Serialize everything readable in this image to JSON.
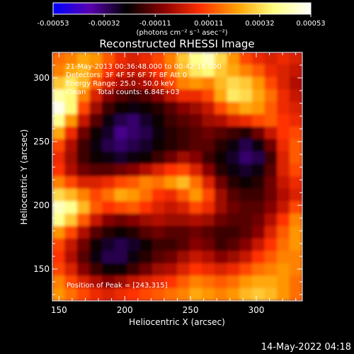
{
  "colorbar": {
    "tick_labels": [
      "-0.00053",
      "-0.00032",
      "-0.00011",
      "0.00011",
      "0.00032",
      "0.00053"
    ],
    "tick_values": [
      -0.00053,
      -0.00032,
      -0.00011,
      0.00011,
      0.00032,
      0.00053
    ],
    "range": [
      -0.00053,
      0.00053
    ],
    "unit_label": "(photons cm⁻² s⁻¹ asec⁻²)",
    "colors": [
      "#0000ff",
      "#5a00b0",
      "#000000",
      "#8a0000",
      "#ff3000",
      "#ffa000",
      "#ffff80",
      "#ffffff"
    ]
  },
  "footer": {
    "timestamp": "14-May-2022 04:18"
  },
  "chart_data": {
    "type": "heatmap",
    "title": "Reconstructed RHESSI Image",
    "xlabel": "Heliocentric X (arcsec)",
    "ylabel": "Heliocentric Y (arcsec)",
    "xlim": [
      145,
      335
    ],
    "ylim": [
      125,
      320
    ],
    "xticks": [
      150,
      200,
      250,
      300
    ],
    "yticks": [
      150,
      200,
      250,
      300
    ],
    "annotations": [
      "21-May-2013 00:36:48.000 to 00:42:16.000",
      "Detectors: 3F 4F 5F 6F 7F 8F Att 0",
      "Energy Range: 25.0 - 50.0 keV",
      "Clean     Total counts: 6.84E+03"
    ],
    "peak_label": "Position of Peak = [243,315]",
    "peak": [
      243,
      315
    ],
    "value_range": [
      -0.00053,
      0.00053
    ],
    "grid_note": "approximate intensity field, columns x=145..335, rows y=320..125",
    "grid": [
      [
        0.3,
        0.35,
        0.45,
        0.4,
        0.25,
        0.1,
        0.05,
        0.1,
        0.2,
        0.35,
        0.55,
        0.75,
        0.85,
        0.6,
        0.4,
        0.2,
        0.1,
        0.05,
        0.1,
        0.05
      ],
      [
        0.35,
        0.45,
        0.5,
        0.35,
        0.15,
        0.05,
        0.0,
        0.05,
        0.15,
        0.3,
        0.5,
        0.65,
        0.7,
        0.55,
        0.45,
        0.35,
        0.25,
        0.1,
        0.05,
        0.0
      ],
      [
        0.55,
        0.65,
        0.5,
        0.25,
        0.05,
        -0.05,
        -0.1,
        -0.05,
        0.05,
        0.2,
        0.35,
        0.4,
        0.35,
        0.5,
        0.6,
        0.55,
        0.4,
        0.2,
        0.05,
        -0.05
      ],
      [
        0.8,
        0.7,
        0.35,
        0.05,
        -0.15,
        -0.25,
        -0.3,
        -0.25,
        -0.15,
        0.0,
        0.1,
        0.1,
        0.2,
        0.45,
        0.65,
        0.6,
        0.45,
        0.3,
        0.1,
        0.0
      ],
      [
        0.95,
        0.7,
        0.2,
        -0.1,
        -0.3,
        -0.4,
        -0.45,
        -0.4,
        -0.35,
        -0.25,
        -0.15,
        -0.1,
        0.0,
        0.2,
        0.35,
        0.45,
        0.4,
        0.25,
        0.1,
        0.05
      ],
      [
        0.75,
        0.4,
        0.0,
        -0.25,
        -0.45,
        -0.55,
        -0.6,
        -0.5,
        -0.4,
        -0.3,
        -0.25,
        -0.2,
        -0.1,
        -0.05,
        0.05,
        0.1,
        0.2,
        0.25,
        0.15,
        0.1
      ],
      [
        0.45,
        0.1,
        -0.2,
        -0.4,
        -0.5,
        -0.65,
        -0.6,
        -0.55,
        -0.45,
        -0.35,
        -0.3,
        -0.25,
        -0.2,
        -0.25,
        -0.3,
        -0.35,
        -0.2,
        0.0,
        0.15,
        0.2
      ],
      [
        0.2,
        -0.05,
        -0.3,
        -0.45,
        -0.55,
        -0.6,
        -0.55,
        -0.5,
        -0.4,
        -0.35,
        -0.3,
        -0.25,
        -0.25,
        -0.35,
        -0.45,
        -0.55,
        -0.45,
        -0.2,
        0.1,
        0.25
      ],
      [
        0.1,
        -0.1,
        -0.3,
        -0.4,
        -0.45,
        -0.5,
        -0.45,
        -0.4,
        -0.3,
        -0.2,
        -0.1,
        -0.15,
        -0.3,
        -0.4,
        -0.5,
        -0.6,
        -0.55,
        -0.3,
        0.05,
        0.25
      ],
      [
        0.15,
        -0.05,
        -0.2,
        -0.25,
        -0.25,
        -0.2,
        -0.15,
        -0.05,
        0.05,
        0.15,
        0.2,
        0.05,
        -0.15,
        -0.35,
        -0.45,
        -0.5,
        -0.45,
        -0.25,
        0.05,
        0.2
      ],
      [
        0.35,
        0.2,
        0.05,
        0.05,
        0.1,
        0.2,
        0.25,
        0.35,
        0.3,
        0.4,
        0.5,
        0.3,
        0.05,
        -0.2,
        -0.35,
        -0.4,
        -0.35,
        -0.2,
        0.0,
        0.1
      ],
      [
        0.6,
        0.5,
        0.35,
        0.2,
        0.3,
        0.45,
        0.4,
        0.3,
        0.15,
        0.1,
        0.25,
        0.4,
        0.2,
        -0.1,
        -0.25,
        -0.3,
        -0.3,
        -0.2,
        -0.05,
        0.05
      ],
      [
        0.85,
        0.75,
        0.5,
        0.25,
        0.15,
        0.2,
        0.25,
        0.15,
        0.05,
        0.0,
        0.05,
        0.2,
        0.1,
        -0.1,
        -0.2,
        -0.25,
        -0.25,
        -0.15,
        0.0,
        0.2
      ],
      [
        0.75,
        0.55,
        0.25,
        0.0,
        -0.15,
        -0.2,
        -0.15,
        -0.1,
        -0.05,
        -0.1,
        -0.1,
        -0.05,
        -0.1,
        -0.2,
        -0.25,
        -0.25,
        -0.2,
        -0.05,
        0.15,
        0.35
      ],
      [
        0.4,
        0.2,
        -0.05,
        -0.25,
        -0.35,
        -0.4,
        -0.35,
        -0.25,
        -0.2,
        -0.25,
        -0.25,
        -0.2,
        -0.25,
        -0.3,
        -0.3,
        -0.25,
        -0.15,
        0.05,
        0.25,
        0.4
      ],
      [
        0.2,
        0.0,
        -0.2,
        -0.4,
        -0.5,
        -0.55,
        -0.5,
        -0.4,
        -0.3,
        -0.3,
        -0.25,
        -0.15,
        -0.2,
        -0.3,
        -0.25,
        -0.15,
        0.0,
        0.15,
        0.3,
        0.4
      ],
      [
        0.15,
        -0.05,
        -0.25,
        -0.45,
        -0.55,
        -0.55,
        -0.45,
        -0.35,
        -0.25,
        -0.2,
        -0.1,
        0.0,
        -0.05,
        -0.15,
        -0.1,
        0.0,
        0.15,
        0.25,
        0.35,
        0.35
      ],
      [
        0.2,
        0.05,
        -0.15,
        -0.3,
        -0.4,
        -0.4,
        -0.3,
        -0.2,
        -0.1,
        -0.05,
        0.05,
        0.15,
        0.1,
        0.05,
        0.1,
        0.2,
        0.3,
        0.35,
        0.4,
        0.35
      ],
      [
        0.35,
        0.2,
        0.05,
        -0.05,
        -0.15,
        -0.1,
        0.0,
        0.05,
        0.1,
        0.15,
        0.25,
        0.35,
        0.3,
        0.25,
        0.3,
        0.4,
        0.45,
        0.45,
        0.4,
        0.3
      ],
      [
        0.4,
        0.3,
        0.2,
        0.1,
        0.05,
        0.1,
        0.15,
        0.2,
        0.25,
        0.3,
        0.35,
        0.45,
        0.4,
        0.35,
        0.4,
        0.5,
        0.55,
        0.5,
        0.4,
        0.3
      ]
    ]
  }
}
